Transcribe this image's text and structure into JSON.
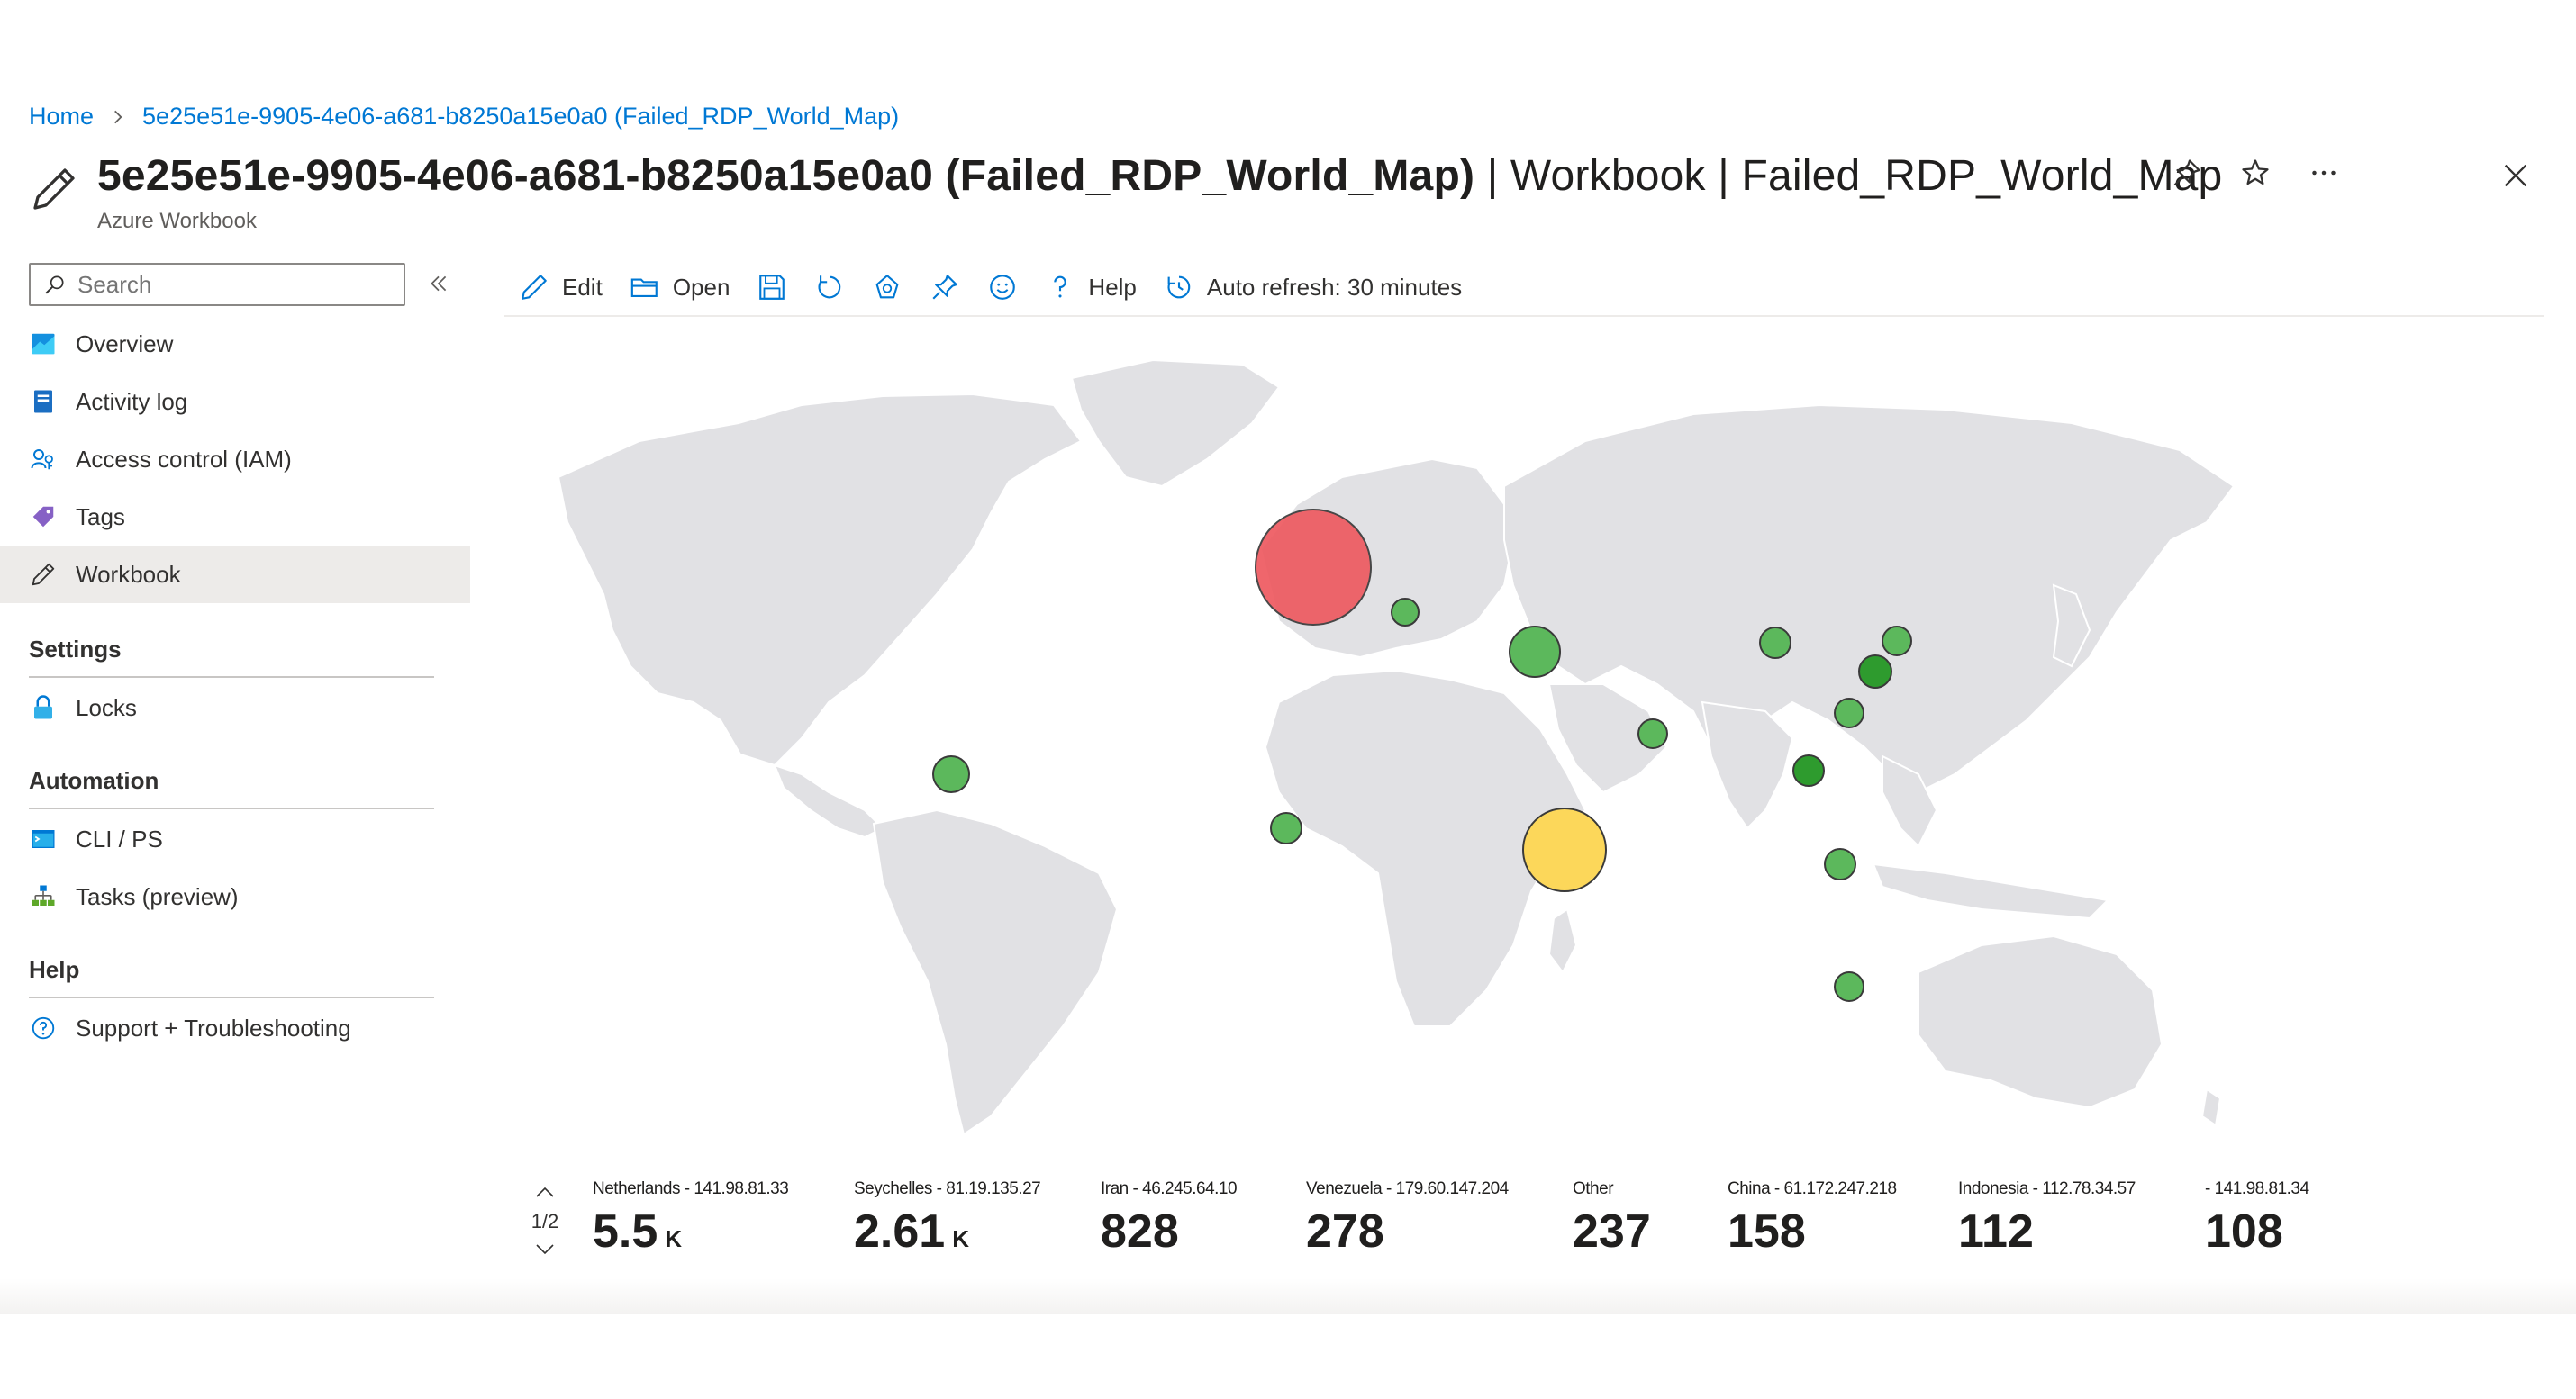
{
  "breadcrumb": {
    "home": "Home",
    "current": "5e25e51e-9905-4e06-a681-b8250a15e0a0 (Failed_RDP_World_Map)"
  },
  "header": {
    "title_main": "5e25e51e-9905-4e06-a681-b8250a15e0a0 (Failed_RDP_World_Map)",
    "title_suffix": " | Workbook | Failed_RDP_World_Map",
    "subtitle": "Azure Workbook"
  },
  "sidebar": {
    "search_placeholder": "Search",
    "items": [
      {
        "label": "Overview",
        "icon": "overview-icon"
      },
      {
        "label": "Activity log",
        "icon": "activity-log-icon"
      },
      {
        "label": "Access control (IAM)",
        "icon": "iam-icon"
      },
      {
        "label": "Tags",
        "icon": "tag-icon"
      },
      {
        "label": "Workbook",
        "icon": "pencil-icon"
      }
    ],
    "sections": [
      {
        "title": "Settings",
        "items": [
          {
            "label": "Locks",
            "icon": "lock-icon"
          }
        ]
      },
      {
        "title": "Automation",
        "items": [
          {
            "label": "CLI / PS",
            "icon": "terminal-icon"
          },
          {
            "label": "Tasks (preview)",
            "icon": "tasks-icon"
          }
        ]
      },
      {
        "title": "Help",
        "items": [
          {
            "label": "Support + Troubleshooting",
            "icon": "help-icon"
          }
        ]
      }
    ]
  },
  "toolbar": {
    "edit": "Edit",
    "open": "Open",
    "help": "Help",
    "auto_refresh": "Auto refresh: 30 minutes"
  },
  "colors": {
    "accent": "#0078d4",
    "bubble_high": "#e8545a",
    "bubble_mid": "#fcd75a",
    "bubble_low": "#4caf50",
    "land": "#e1e1e4"
  },
  "tiles": {
    "pager": "1/2",
    "items": [
      {
        "label": "Netherlands - 141.98.81.33",
        "value": "5.5",
        "unit": "K"
      },
      {
        "label": "Seychelles - 81.19.135.27",
        "value": "2.61",
        "unit": "K"
      },
      {
        "label": "Iran - 46.245.64.10",
        "value": "828",
        "unit": ""
      },
      {
        "label": "Venezuela - 179.60.147.204",
        "value": "278",
        "unit": ""
      },
      {
        "label": "Other",
        "value": "237",
        "unit": ""
      },
      {
        "label": "China - 61.172.247.218",
        "value": "158",
        "unit": ""
      },
      {
        "label": "Indonesia - 112.78.34.57",
        "value": "112",
        "unit": ""
      },
      {
        "label": "- 141.98.81.34",
        "value": "108",
        "unit": ""
      }
    ]
  }
}
